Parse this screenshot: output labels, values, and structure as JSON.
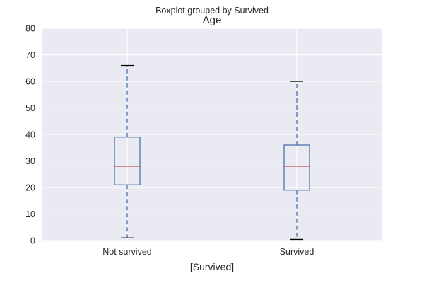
{
  "chart_data": {
    "type": "box",
    "suptitle": "Boxplot grouped by Survived",
    "title": "Age",
    "xlabel": "[Survived]",
    "ylabel": "",
    "ylim": [
      0,
      80
    ],
    "yticks": [
      0,
      10,
      20,
      30,
      40,
      50,
      60,
      70,
      80
    ],
    "categories": [
      "Not survived",
      "Survived"
    ],
    "boxes": [
      {
        "category": "Not survived",
        "whisker_low": 1,
        "q1": 21,
        "median": 28,
        "q3": 39,
        "whisker_high": 66
      },
      {
        "category": "Survived",
        "whisker_low": 0.42,
        "q1": 19,
        "median": 28,
        "q3": 36,
        "whisker_high": 60
      }
    ],
    "grid": true,
    "colors": {
      "background": "#eaeaf2",
      "grid": "#ffffff",
      "box": "#4c72b0",
      "median": "#c44e52",
      "cap": "#000000"
    }
  }
}
